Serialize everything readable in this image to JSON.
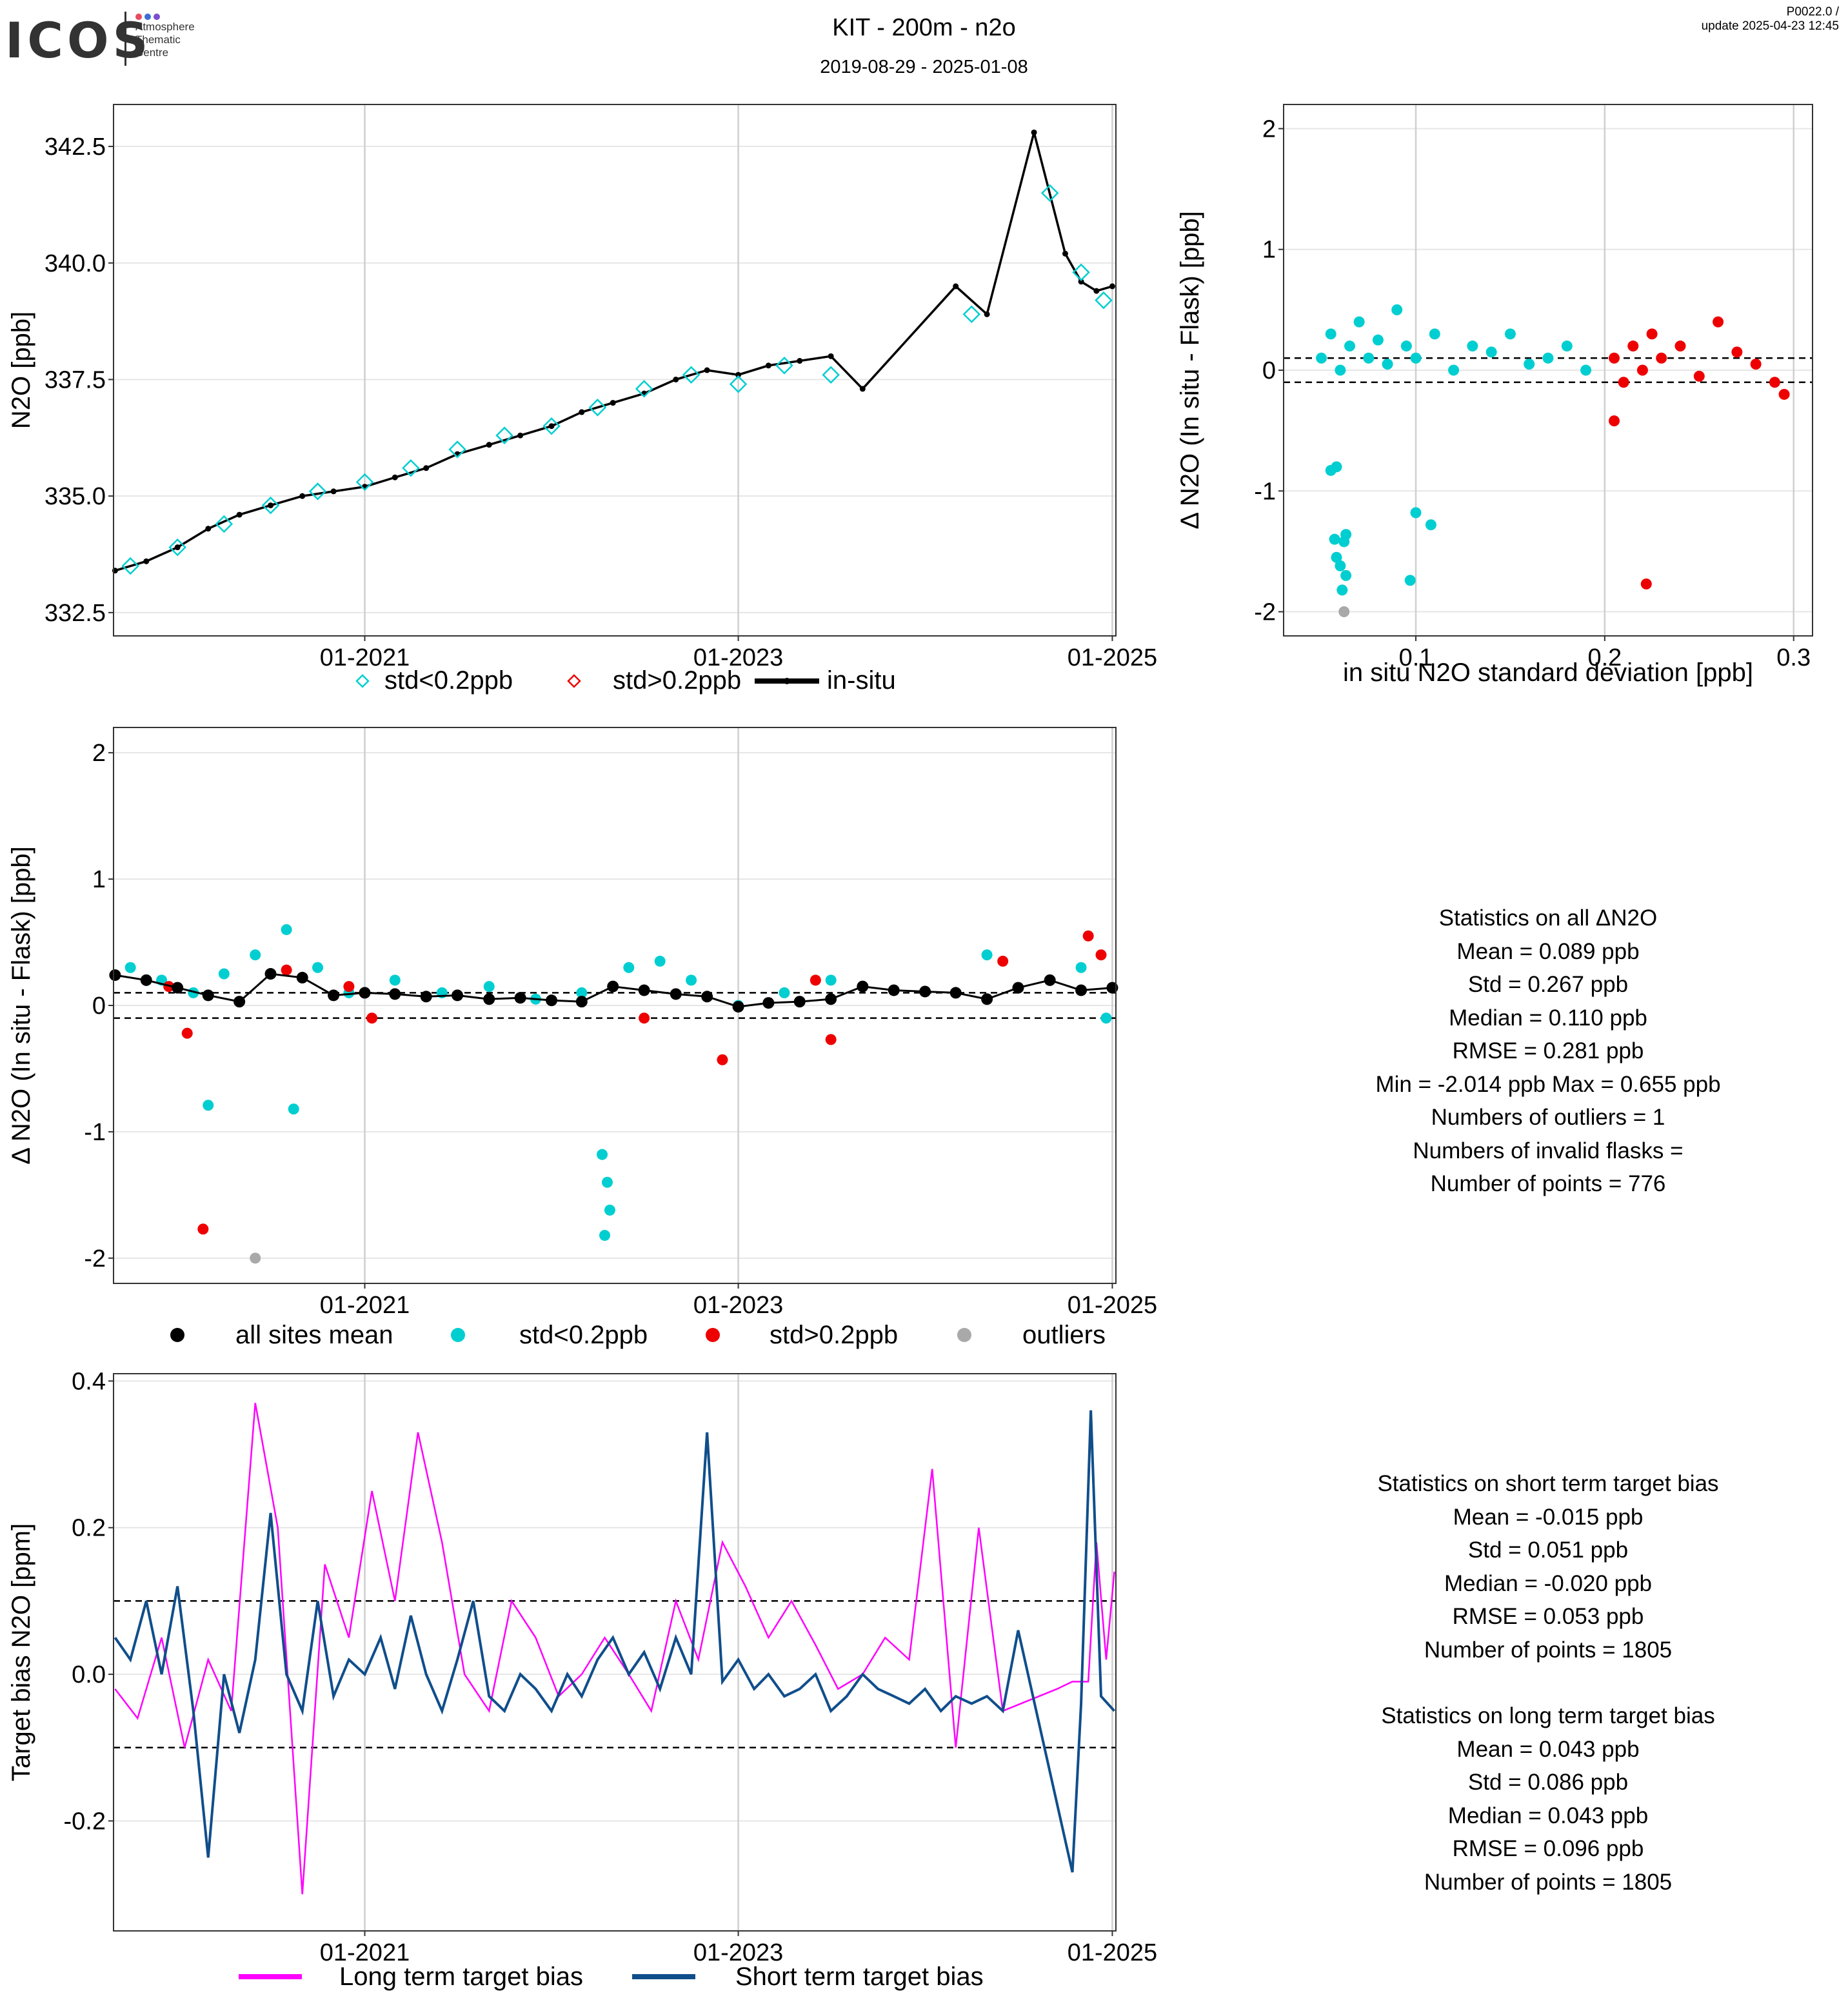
{
  "header": {
    "logo_text": "ICOS",
    "logo_subtitle": [
      "Atmosphere",
      "Thematic",
      "Centre"
    ],
    "logo_dot_colors": [
      "#e84a5f",
      "#3b6fd4",
      "#7b4fd0"
    ],
    "title": "KIT - 200m - n2o",
    "date_range": "2019-08-29 - 2025-01-08",
    "version": "P0022.0 /",
    "update": "update  2025-04-23 12:45"
  },
  "colors": {
    "cyan": "#00CED1",
    "red": "#EE0000",
    "black": "#000000",
    "grey": "#A9A9A9",
    "magenta": "#FF00FF",
    "navy": "#104E8B"
  },
  "chart_data": [
    {
      "id": "timeseries",
      "type": "line",
      "title": "",
      "xlabel": "",
      "ylabel": "N2O [ppb]",
      "xlim": [
        "2019-08-29",
        "2025-01-08"
      ],
      "ylim": [
        332.0,
        343.4
      ],
      "x_ticks": [
        "01-2021",
        "01-2023",
        "01-2025"
      ],
      "y_ticks": [
        "332.5",
        "335.0",
        "337.5",
        "340.0",
        "342.5"
      ],
      "grid": true,
      "legend": {
        "position": "bottom",
        "entries": [
          "std<0.2ppb",
          "std>0.2ppb",
          "in-situ"
        ]
      },
      "series": [
        {
          "name": "in-situ",
          "style": "line-with-points",
          "x": [
            "2019-09-01",
            "2019-11-01",
            "2020-01-01",
            "2020-03-01",
            "2020-05-01",
            "2020-07-01",
            "2020-09-01",
            "2020-11-01",
            "2021-01-01",
            "2021-03-01",
            "2021-05-01",
            "2021-07-01",
            "2021-09-01",
            "2021-11-01",
            "2022-01-01",
            "2022-03-01",
            "2022-05-01",
            "2022-07-01",
            "2022-09-01",
            "2022-11-01",
            "2023-01-01",
            "2023-03-01",
            "2023-05-01",
            "2023-07-01",
            "2023-09-01",
            "2024-03-01",
            "2024-05-01",
            "2024-08-01",
            "2024-10-01",
            "2024-11-01",
            "2024-12-01",
            "2025-01-01"
          ],
          "values": [
            333.4,
            333.6,
            333.9,
            334.3,
            334.6,
            334.8,
            335.0,
            335.1,
            335.2,
            335.4,
            335.6,
            335.9,
            336.1,
            336.3,
            336.5,
            336.8,
            337.0,
            337.2,
            337.5,
            337.7,
            337.6,
            337.8,
            337.9,
            338.0,
            337.3,
            339.5,
            338.9,
            342.8,
            340.2,
            339.6,
            339.4,
            339.5
          ]
        },
        {
          "name": "std<0.2ppb",
          "style": "diamond",
          "x": [
            "2019-10-01",
            "2020-01-01",
            "2020-04-01",
            "2020-07-01",
            "2020-10-01",
            "2021-01-01",
            "2021-04-01",
            "2021-07-01",
            "2021-10-01",
            "2022-01-01",
            "2022-04-01",
            "2022-07-01",
            "2022-10-01",
            "2023-01-01",
            "2023-04-01",
            "2023-07-01",
            "2024-04-01",
            "2024-09-01",
            "2024-11-01",
            "2024-12-15"
          ],
          "values": [
            333.5,
            333.9,
            334.4,
            334.8,
            335.1,
            335.3,
            335.6,
            336.0,
            336.3,
            336.5,
            336.9,
            337.3,
            337.6,
            337.4,
            337.8,
            337.6,
            338.9,
            341.5,
            339.8,
            339.2
          ]
        },
        {
          "name": "std>0.2ppb",
          "style": "diamond-red",
          "x": [],
          "values": []
        }
      ]
    },
    {
      "id": "scatter-vs-std",
      "type": "scatter",
      "title": "",
      "xlabel": "in situ N2O standard deviation [ppb]",
      "ylabel": "Δ N2O (In situ - Flask) [ppb]",
      "xlim": [
        0.03,
        0.31
      ],
      "ylim": [
        -2.2,
        2.2
      ],
      "x_ticks": [
        "0.1",
        "0.2",
        "0.3"
      ],
      "y_ticks": [
        "-2",
        "-1",
        "0",
        "1",
        "2"
      ],
      "hlines": [
        0.1,
        -0.1
      ],
      "grid": true,
      "series": [
        {
          "name": "std<0.2ppb",
          "points": [
            [
              0.05,
              0.1
            ],
            [
              0.055,
              0.3
            ],
            [
              0.06,
              0.0
            ],
            [
              0.065,
              0.2
            ],
            [
              0.07,
              0.4
            ],
            [
              0.075,
              0.1
            ],
            [
              0.08,
              0.25
            ],
            [
              0.085,
              0.05
            ],
            [
              0.09,
              0.5
            ],
            [
              0.095,
              0.2
            ],
            [
              0.1,
              0.1
            ],
            [
              0.11,
              0.3
            ],
            [
              0.12,
              0.0
            ],
            [
              0.13,
              0.2
            ],
            [
              0.14,
              0.15
            ],
            [
              0.15,
              0.3
            ],
            [
              0.16,
              0.05
            ],
            [
              0.17,
              0.1
            ],
            [
              0.18,
              0.2
            ],
            [
              0.19,
              0.0
            ],
            [
              0.055,
              -0.83
            ],
            [
              0.058,
              -0.8
            ],
            [
              0.057,
              -1.4
            ],
            [
              0.062,
              -1.42
            ],
            [
              0.063,
              -1.36
            ],
            [
              0.058,
              -1.55
            ],
            [
              0.06,
              -1.62
            ],
            [
              0.063,
              -1.7
            ],
            [
              0.061,
              -1.82
            ],
            [
              0.1,
              -1.18
            ],
            [
              0.108,
              -1.28
            ],
            [
              0.097,
              -1.74
            ]
          ]
        },
        {
          "name": "std>0.2ppb",
          "points": [
            [
              0.205,
              0.1
            ],
            [
              0.21,
              -0.1
            ],
            [
              0.215,
              0.2
            ],
            [
              0.22,
              0.0
            ],
            [
              0.225,
              0.3
            ],
            [
              0.23,
              0.1
            ],
            [
              0.24,
              0.2
            ],
            [
              0.25,
              -0.05
            ],
            [
              0.26,
              0.4
            ],
            [
              0.27,
              0.15
            ],
            [
              0.28,
              0.05
            ],
            [
              0.29,
              -0.1
            ],
            [
              0.295,
              -0.2
            ],
            [
              0.205,
              -0.42
            ],
            [
              0.222,
              -1.77
            ]
          ]
        },
        {
          "name": "outliers",
          "points": [
            [
              0.062,
              -2.0
            ]
          ]
        }
      ]
    },
    {
      "id": "delta-timeseries",
      "type": "scatter",
      "title": "",
      "xlabel": "",
      "ylabel": "Δ N2O (In situ - Flask) [ppb]",
      "xlim": [
        "2019-08-29",
        "2025-01-08"
      ],
      "ylim": [
        -2.2,
        2.2
      ],
      "x_ticks": [
        "01-2021",
        "01-2023",
        "01-2025"
      ],
      "y_ticks": [
        "-2",
        "-1",
        "0",
        "1",
        "2"
      ],
      "hlines": [
        0.1,
        -0.1
      ],
      "grid": true,
      "legend": {
        "position": "bottom",
        "entries": [
          "all sites mean",
          "std<0.2ppb",
          "std>0.2ppb",
          "outliers"
        ]
      },
      "series": [
        {
          "name": "std<0.2ppb",
          "x": [
            "2019-10-01",
            "2019-12-01",
            "2020-02-01",
            "2020-04-01",
            "2020-06-01",
            "2020-08-01",
            "2020-10-01",
            "2020-12-01",
            "2021-03-01",
            "2021-06-01",
            "2021-09-01",
            "2021-12-01",
            "2022-03-01",
            "2022-06-01",
            "2022-08-01",
            "2022-10-01",
            "2023-01-01",
            "2023-04-01",
            "2023-07-01",
            "2024-05-01",
            "2024-11-01",
            "2024-12-20",
            "2020-03-01",
            "2020-08-15",
            "2022-04-10",
            "2022-04-20",
            "2022-04-25",
            "2022-04-15"
          ],
          "values": [
            0.3,
            0.2,
            0.1,
            0.25,
            0.4,
            0.6,
            0.3,
            0.1,
            0.2,
            0.1,
            0.15,
            0.05,
            0.1,
            0.3,
            0.35,
            0.2,
            0.0,
            0.1,
            0.2,
            0.4,
            0.3,
            -0.1,
            -0.79,
            -0.82,
            -1.18,
            -1.4,
            -1.62,
            -1.82
          ]
        },
        {
          "name": "std>0.2ppb",
          "x": [
            "2019-12-15",
            "2020-01-20",
            "2020-08-01",
            "2020-12-01",
            "2021-01-15",
            "2022-07-01",
            "2022-12-01",
            "2023-06-01",
            "2023-07-01",
            "2024-06-01",
            "2024-11-15",
            "2024-12-10",
            "2020-02-20"
          ],
          "values": [
            0.15,
            -0.22,
            0.28,
            0.15,
            -0.1,
            -0.1,
            -0.43,
            0.2,
            -0.27,
            0.35,
            0.55,
            0.4,
            -1.77
          ]
        },
        {
          "name": "outliers",
          "x": [
            "2020-06-01"
          ],
          "values": [
            -2.0
          ]
        },
        {
          "name": "all sites mean",
          "x": [
            "2019-09-01",
            "2019-11-01",
            "2020-01-01",
            "2020-03-01",
            "2020-05-01",
            "2020-07-01",
            "2020-09-01",
            "2020-11-01",
            "2021-01-01",
            "2021-03-01",
            "2021-05-01",
            "2021-07-01",
            "2021-09-01",
            "2021-11-01",
            "2022-01-01",
            "2022-03-01",
            "2022-05-01",
            "2022-07-01",
            "2022-09-01",
            "2022-11-01",
            "2023-01-01",
            "2023-03-01",
            "2023-05-01",
            "2023-07-01",
            "2023-09-01",
            "2023-11-01",
            "2024-01-01",
            "2024-03-01",
            "2024-05-01",
            "2024-07-01",
            "2024-09-01",
            "2024-11-01",
            "2025-01-01"
          ],
          "values": [
            0.24,
            0.2,
            0.14,
            0.08,
            0.03,
            0.25,
            0.22,
            0.08,
            0.1,
            0.09,
            0.07,
            0.08,
            0.05,
            0.06,
            0.04,
            0.03,
            0.15,
            0.12,
            0.09,
            0.07,
            -0.01,
            0.02,
            0.03,
            0.05,
            0.15,
            0.12,
            0.11,
            0.1,
            0.05,
            0.14,
            0.2,
            0.12,
            0.14
          ]
        }
      ]
    },
    {
      "id": "target-bias",
      "type": "line",
      "title": "",
      "xlabel": "",
      "ylabel": "Target bias N2O [ppm]",
      "xlim": [
        "2019-08-29",
        "2025-01-08"
      ],
      "ylim": [
        -0.35,
        0.41
      ],
      "x_ticks": [
        "01-2021",
        "01-2023",
        "01-2025"
      ],
      "y_ticks": [
        "-0.2",
        "0.0",
        "0.2",
        "0.4"
      ],
      "hlines": [
        0.1,
        -0.1
      ],
      "grid": true,
      "legend": {
        "position": "bottom",
        "entries": [
          "Long term target bias",
          "Short term target bias"
        ]
      },
      "series": [
        {
          "name": "Long term target bias",
          "x": [
            "2019-09-01",
            "2019-10-15",
            "2019-12-01",
            "2020-01-15",
            "2020-03-01",
            "2020-04-15",
            "2020-06-01",
            "2020-07-15",
            "2020-09-01",
            "2020-10-15",
            "2020-12-01",
            "2021-01-15",
            "2021-03-01",
            "2021-04-15",
            "2021-06-01",
            "2021-07-15",
            "2021-09-01",
            "2021-10-15",
            "2021-12-01",
            "2022-01-15",
            "2022-03-01",
            "2022-04-15",
            "2022-06-01",
            "2022-07-15",
            "2022-09-01",
            "2022-10-15",
            "2022-12-01",
            "2023-01-15",
            "2023-03-01",
            "2023-04-15",
            "2023-06-01",
            "2023-07-15",
            "2023-09-01",
            "2023-10-15",
            "2023-12-01",
            "2024-01-15",
            "2024-03-01",
            "2024-04-15",
            "2024-06-01",
            "2024-09-15",
            "2024-10-15",
            "2024-11-15",
            "2024-12-01",
            "2024-12-20",
            "2025-01-05"
          ],
          "values": [
            -0.02,
            -0.06,
            0.05,
            -0.1,
            0.02,
            -0.05,
            0.37,
            0.2,
            -0.3,
            0.15,
            0.05,
            0.25,
            0.1,
            0.33,
            0.18,
            0.0,
            -0.05,
            0.1,
            0.05,
            -0.03,
            0.0,
            0.05,
            0.0,
            -0.05,
            0.1,
            0.02,
            0.18,
            0.12,
            0.05,
            0.1,
            0.04,
            -0.02,
            0.0,
            0.05,
            0.02,
            0.28,
            -0.1,
            0.2,
            -0.05,
            -0.02,
            -0.01,
            -0.01,
            0.18,
            0.02,
            0.14
          ]
        },
        {
          "name": "Short term target bias",
          "x": [
            "2019-09-01",
            "2019-10-01",
            "2019-11-01",
            "2019-12-01",
            "2020-01-01",
            "2020-02-01",
            "2020-03-01",
            "2020-04-01",
            "2020-05-01",
            "2020-06-01",
            "2020-07-01",
            "2020-08-01",
            "2020-09-01",
            "2020-10-01",
            "2020-11-01",
            "2020-12-01",
            "2021-01-01",
            "2021-02-01",
            "2021-03-01",
            "2021-04-01",
            "2021-05-01",
            "2021-06-01",
            "2021-07-01",
            "2021-08-01",
            "2021-09-01",
            "2021-10-01",
            "2021-11-01",
            "2021-12-01",
            "2022-01-01",
            "2022-02-01",
            "2022-03-01",
            "2022-04-01",
            "2022-05-01",
            "2022-06-01",
            "2022-07-01",
            "2022-08-01",
            "2022-09-01",
            "2022-10-01",
            "2022-11-01",
            "2022-12-01",
            "2023-01-01",
            "2023-02-01",
            "2023-03-01",
            "2023-04-01",
            "2023-05-01",
            "2023-06-01",
            "2023-07-01",
            "2023-08-01",
            "2023-09-01",
            "2023-10-01",
            "2023-11-01",
            "2023-12-01",
            "2024-01-01",
            "2024-02-01",
            "2024-03-01",
            "2024-04-01",
            "2024-05-01",
            "2024-06-01",
            "2024-07-01",
            "2024-10-15",
            "2024-11-01",
            "2024-11-20",
            "2024-12-10",
            "2025-01-05"
          ],
          "values": [
            0.05,
            0.02,
            0.1,
            0.0,
            0.12,
            -0.05,
            -0.25,
            0.0,
            -0.08,
            0.02,
            0.22,
            0.0,
            -0.05,
            0.1,
            -0.03,
            0.02,
            0.0,
            0.05,
            -0.02,
            0.08,
            0.0,
            -0.05,
            0.02,
            0.1,
            -0.03,
            -0.05,
            0.0,
            -0.02,
            -0.05,
            0.0,
            -0.03,
            0.02,
            0.05,
            0.0,
            0.03,
            -0.02,
            0.05,
            0.0,
            0.33,
            -0.01,
            0.02,
            -0.02,
            0.0,
            -0.03,
            -0.02,
            0.0,
            -0.05,
            -0.03,
            0.0,
            -0.02,
            -0.03,
            -0.04,
            -0.02,
            -0.05,
            -0.03,
            -0.04,
            -0.03,
            -0.05,
            0.06,
            -0.27,
            -0.04,
            0.36,
            -0.03,
            -0.05
          ]
        }
      ]
    }
  ],
  "stats_delta": {
    "title": "Statistics on all ΔN2O",
    "lines": [
      "Mean =  0.089 ppb",
      "Std =  0.267 ppb",
      "Median =  0.110 ppb",
      "RMSE =  0.281 ppb",
      "Min =  -2.014 ppb Max =  0.655 ppb",
      "Numbers of outliers =  1",
      "Numbers of invalid flasks =",
      "Number of points =  776"
    ]
  },
  "stats_short": {
    "title": "Statistics on short term target bias",
    "lines": [
      "Mean =  -0.015 ppb",
      "Std =  0.051 ppb",
      "Median =  -0.020 ppb",
      "RMSE =  0.053 ppb",
      "Number of points =  1805"
    ]
  },
  "stats_long": {
    "title": "Statistics on long term target bias",
    "lines": [
      "Mean =  0.043 ppb",
      "Std =  0.086 ppb",
      "Median =  0.043 ppb",
      "RMSE =  0.096 ppb",
      "Number of points =  1805"
    ]
  }
}
